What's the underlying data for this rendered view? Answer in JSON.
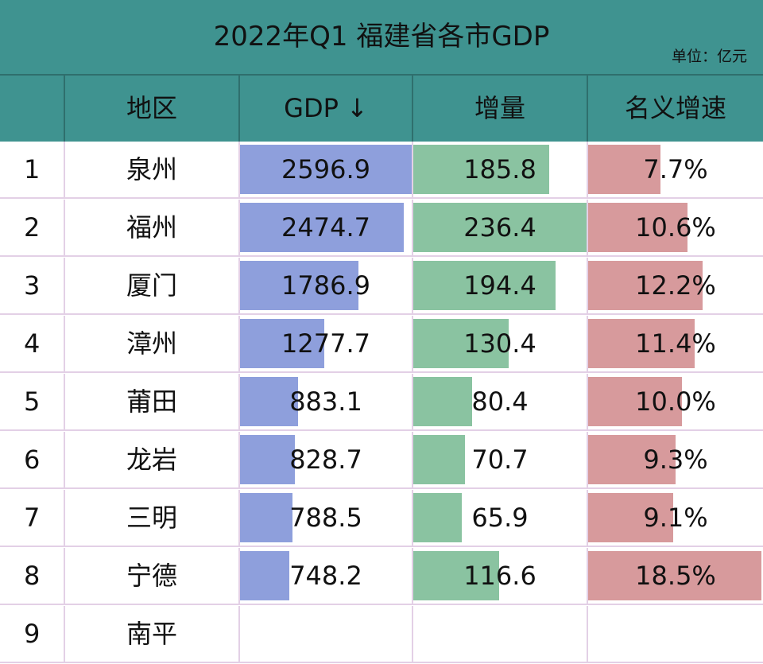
{
  "title": "2022年Q1 福建省各市GDP",
  "unit": "单位：亿元",
  "headers": [
    "",
    "地区",
    "GDP ↓",
    "增量",
    "名义增速"
  ],
  "colors": {
    "header_bg": "#3f9390",
    "gdp_bar": "#8e9fdc",
    "increase_bar": "#8ac3a1",
    "rate_bar": "#d79a9c"
  },
  "chart_data": {
    "type": "table",
    "rows": [
      {
        "rank": "1",
        "region": "泉州",
        "gdp": "2596.9",
        "increase": "185.8",
        "rate": "7.7%"
      },
      {
        "rank": "2",
        "region": "福州",
        "gdp": "2474.7",
        "increase": "236.4",
        "rate": "10.6%"
      },
      {
        "rank": "3",
        "region": "厦门",
        "gdp": "1786.9",
        "increase": "194.4",
        "rate": "12.2%"
      },
      {
        "rank": "4",
        "region": "漳州",
        "gdp": "1277.7",
        "increase": "130.4",
        "rate": "11.4%"
      },
      {
        "rank": "5",
        "region": "莆田",
        "gdp": "883.1",
        "increase": "80.4",
        "rate": "10.0%"
      },
      {
        "rank": "6",
        "region": "龙岩",
        "gdp": "828.7",
        "increase": "70.7",
        "rate": "9.3%"
      },
      {
        "rank": "7",
        "region": "三明",
        "gdp": "788.5",
        "increase": "65.9",
        "rate": "9.1%"
      },
      {
        "rank": "8",
        "region": "宁德",
        "gdp": "748.2",
        "increase": "116.6",
        "rate": "18.5%"
      },
      {
        "rank": "9",
        "region": "南平",
        "gdp": "",
        "increase": "",
        "rate": ""
      }
    ]
  }
}
